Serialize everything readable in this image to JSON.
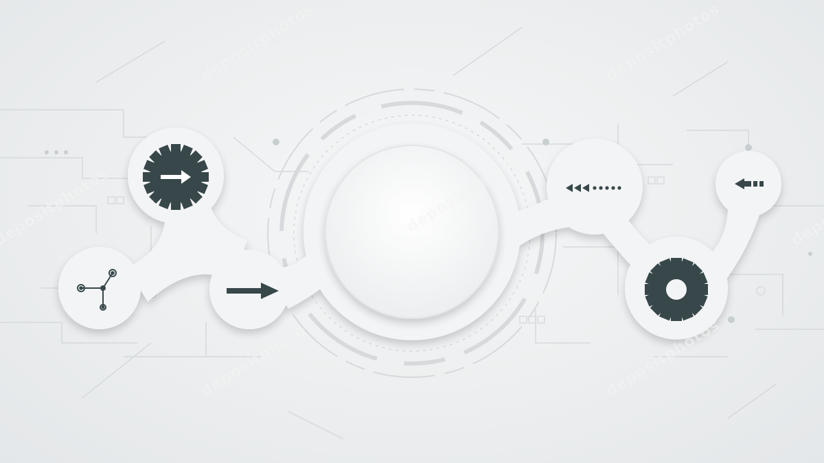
{
  "colors": {
    "background": "#eceeef",
    "node_fill": "#f4f5f6",
    "center_circle": "#f7f7f8",
    "icon_dark": "#37474a",
    "circuit_lines": "#cdd2d5"
  },
  "watermark": {
    "text": "depositphotos"
  },
  "icons": [
    "gear-arrow-right-icon",
    "network-nodes-icon",
    "arrow-right-icon",
    "triple-chevron-left-dots-icon",
    "arrow-left-small-icon",
    "gear-icon"
  ]
}
